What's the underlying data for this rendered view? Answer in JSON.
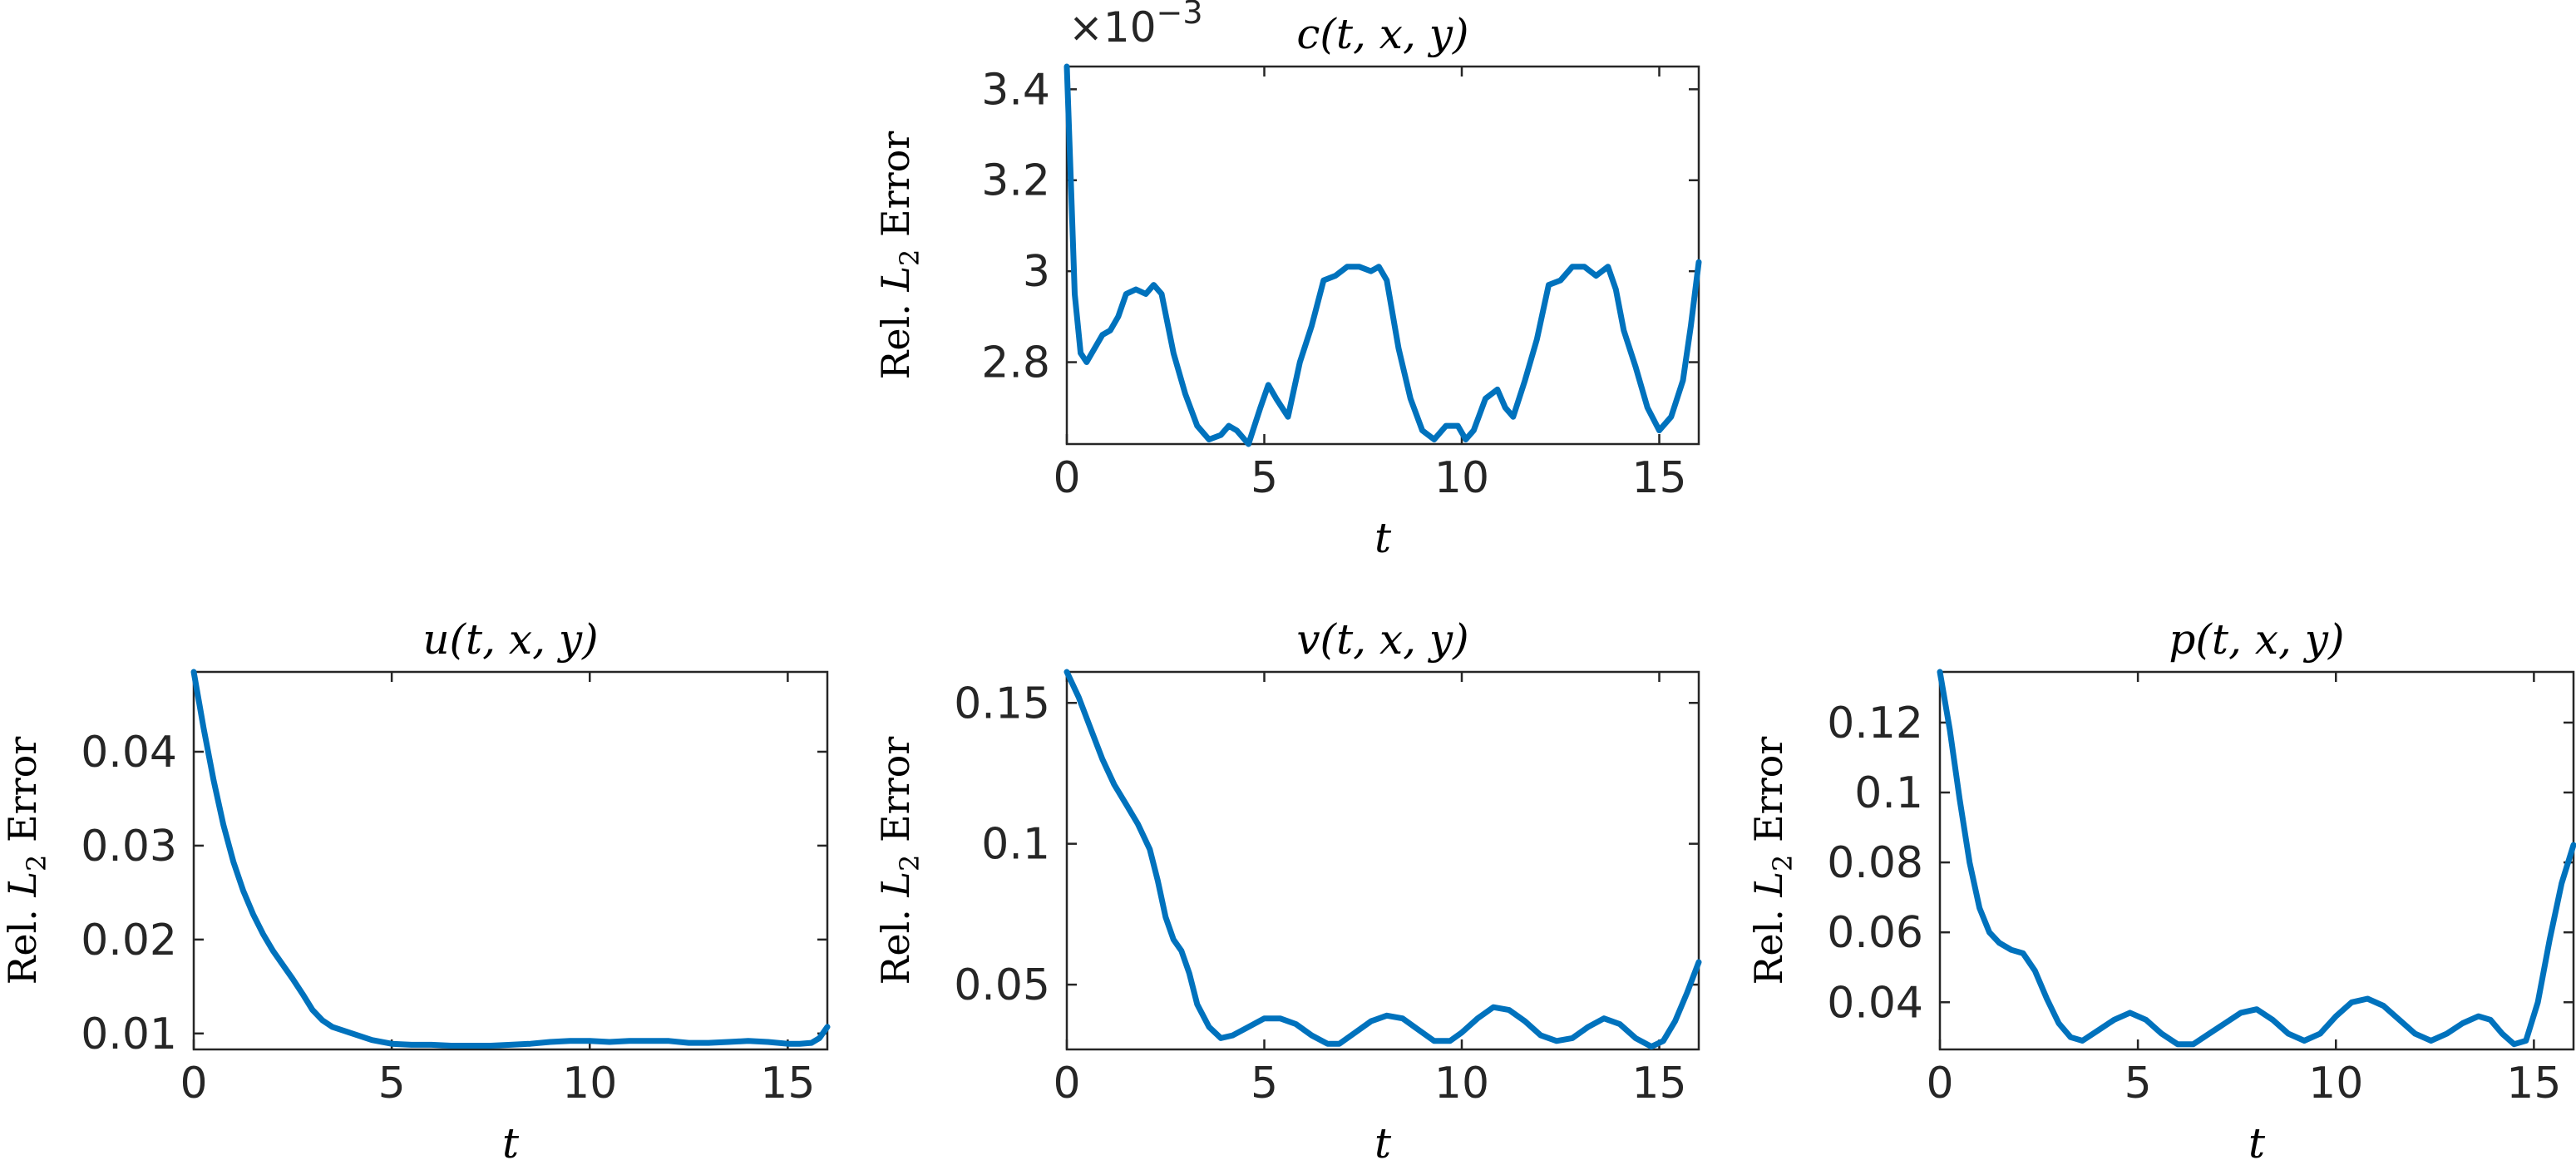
{
  "chart_data": [
    {
      "type": "line",
      "title": "c(t, x, y)",
      "xlabel": "t",
      "ylabel": {
        "prefix": "Rel. ",
        "symbol": "L",
        "subscript": "2",
        "suffix": " Error"
      },
      "y_exponent_label": {
        "base": "×10",
        "power": "−3"
      },
      "xlim": [
        0,
        16
      ],
      "ylim": [
        2.62,
        3.45
      ],
      "xticks": [
        0,
        5,
        10,
        15
      ],
      "xtick_labels": [
        "0",
        "5",
        "10",
        "15"
      ],
      "yticks": [
        2.8,
        3.0,
        3.2,
        3.4
      ],
      "ytick_labels": [
        "2.8",
        "3",
        "3.2",
        "3.4"
      ],
      "color": "#0072BD",
      "series": [
        {
          "x": [
            0,
            0.1,
            0.2,
            0.35,
            0.5,
            0.7,
            0.9,
            1.1,
            1.3,
            1.5,
            1.75,
            2.0,
            2.2,
            2.4,
            2.7,
            3.0,
            3.3,
            3.6,
            3.9,
            4.1,
            4.3,
            4.6,
            4.9,
            5.1,
            5.3,
            5.6,
            5.9,
            6.2,
            6.5,
            6.8,
            7.1,
            7.4,
            7.7,
            7.9,
            8.1,
            8.4,
            8.7,
            9.0,
            9.3,
            9.6,
            9.9,
            10.1,
            10.3,
            10.6,
            10.9,
            11.1,
            11.3,
            11.6,
            11.9,
            12.2,
            12.5,
            12.8,
            13.1,
            13.4,
            13.7,
            13.9,
            14.1,
            14.4,
            14.7,
            15.0,
            15.3,
            15.6,
            15.8,
            16.0
          ],
          "y": [
            3.45,
            3.2,
            2.95,
            2.82,
            2.8,
            2.83,
            2.86,
            2.87,
            2.9,
            2.95,
            2.96,
            2.95,
            2.97,
            2.95,
            2.82,
            2.73,
            2.66,
            2.63,
            2.64,
            2.66,
            2.65,
            2.62,
            2.7,
            2.75,
            2.72,
            2.68,
            2.8,
            2.88,
            2.98,
            2.99,
            3.01,
            3.01,
            3.0,
            3.01,
            2.98,
            2.83,
            2.72,
            2.65,
            2.63,
            2.66,
            2.66,
            2.63,
            2.65,
            2.72,
            2.74,
            2.7,
            2.68,
            2.76,
            2.85,
            2.97,
            2.98,
            3.01,
            3.01,
            2.99,
            3.01,
            2.96,
            2.87,
            2.79,
            2.7,
            2.65,
            2.68,
            2.76,
            2.88,
            3.02
          ]
        }
      ]
    },
    {
      "type": "line",
      "title": "u(t, x, y)",
      "xlabel": "t",
      "ylabel": {
        "prefix": "Rel. ",
        "symbol": "L",
        "subscript": "2",
        "suffix": " Error"
      },
      "xlim": [
        0,
        16
      ],
      "ylim": [
        0.0083,
        0.0485
      ],
      "xticks": [
        0,
        5,
        10,
        15
      ],
      "xtick_labels": [
        "0",
        "5",
        "10",
        "15"
      ],
      "yticks": [
        0.01,
        0.02,
        0.03,
        0.04
      ],
      "ytick_labels": [
        "0.01",
        "0.02",
        "0.03",
        "0.04"
      ],
      "color": "#0072BD",
      "series": [
        {
          "x": [
            0,
            0.25,
            0.5,
            0.75,
            1.0,
            1.25,
            1.5,
            1.75,
            2.0,
            2.25,
            2.5,
            2.75,
            3.0,
            3.25,
            3.5,
            4,
            4.5,
            5,
            5.5,
            6,
            6.5,
            7,
            7.5,
            8,
            8.5,
            9,
            9.5,
            10,
            10.5,
            11,
            11.5,
            12,
            12.5,
            13,
            13.5,
            14,
            14.5,
            15,
            15.3,
            15.6,
            15.8,
            16.0
          ],
          "y": [
            0.0485,
            0.0425,
            0.037,
            0.0322,
            0.0283,
            0.0252,
            0.0227,
            0.0206,
            0.0188,
            0.0173,
            0.0158,
            0.0142,
            0.0125,
            0.0114,
            0.0107,
            0.01,
            0.0093,
            0.0089,
            0.0088,
            0.0088,
            0.0087,
            0.0087,
            0.0087,
            0.0088,
            0.0089,
            0.0091,
            0.0092,
            0.0092,
            0.0091,
            0.0092,
            0.0092,
            0.0092,
            0.009,
            0.009,
            0.0091,
            0.0092,
            0.0091,
            0.0089,
            0.0089,
            0.009,
            0.0095,
            0.0107
          ]
        }
      ]
    },
    {
      "type": "line",
      "title": "v(t, x, y)",
      "xlabel": "t",
      "ylabel": {
        "prefix": "Rel. ",
        "symbol": "L",
        "subscript": "2",
        "suffix": " Error"
      },
      "xlim": [
        0,
        16
      ],
      "ylim": [
        0.027,
        0.161
      ],
      "xticks": [
        0,
        5,
        10,
        15
      ],
      "xtick_labels": [
        "0",
        "5",
        "10",
        "15"
      ],
      "yticks": [
        0.05,
        0.1,
        0.15
      ],
      "ytick_labels": [
        "0.05",
        "0.1",
        "0.15"
      ],
      "color": "#0072BD",
      "series": [
        {
          "x": [
            0,
            0.3,
            0.6,
            0.9,
            1.2,
            1.5,
            1.8,
            2.1,
            2.3,
            2.5,
            2.7,
            2.9,
            3.1,
            3.3,
            3.6,
            3.9,
            4.2,
            4.6,
            5.0,
            5.4,
            5.8,
            6.2,
            6.6,
            6.9,
            7.3,
            7.7,
            8.1,
            8.5,
            8.9,
            9.3,
            9.7,
            10.0,
            10.4,
            10.8,
            11.2,
            11.6,
            12.0,
            12.4,
            12.8,
            13.2,
            13.6,
            14.0,
            14.4,
            14.8,
            15.1,
            15.4,
            15.7,
            16.0
          ],
          "y": [
            0.161,
            0.152,
            0.141,
            0.13,
            0.121,
            0.114,
            0.107,
            0.098,
            0.087,
            0.074,
            0.066,
            0.062,
            0.054,
            0.043,
            0.035,
            0.031,
            0.032,
            0.035,
            0.038,
            0.038,
            0.036,
            0.032,
            0.029,
            0.029,
            0.033,
            0.037,
            0.039,
            0.038,
            0.034,
            0.03,
            0.03,
            0.033,
            0.038,
            0.042,
            0.041,
            0.037,
            0.032,
            0.03,
            0.031,
            0.035,
            0.038,
            0.036,
            0.031,
            0.028,
            0.03,
            0.037,
            0.047,
            0.058
          ]
        }
      ]
    },
    {
      "type": "line",
      "title": "p(t, x, y)",
      "xlabel": "t",
      "ylabel": {
        "prefix": "Rel. ",
        "symbol": "L",
        "subscript": "2",
        "suffix": " Error"
      },
      "xlim": [
        0,
        16
      ],
      "ylim": [
        0.0265,
        0.1345
      ],
      "xticks": [
        0,
        5,
        10,
        15
      ],
      "xtick_labels": [
        "0",
        "5",
        "10",
        "15"
      ],
      "yticks": [
        0.04,
        0.06,
        0.08,
        0.1,
        0.12
      ],
      "ytick_labels": [
        "0.04",
        "0.06",
        "0.08",
        "0.1",
        "0.12"
      ],
      "color": "#0072BD",
      "series": [
        {
          "x": [
            0,
            0.25,
            0.5,
            0.75,
            1.0,
            1.25,
            1.5,
            1.8,
            2.1,
            2.4,
            2.7,
            3.0,
            3.3,
            3.6,
            4.0,
            4.4,
            4.8,
            5.2,
            5.6,
            6.0,
            6.4,
            6.8,
            7.2,
            7.6,
            8.0,
            8.4,
            8.8,
            9.2,
            9.6,
            10.0,
            10.4,
            10.8,
            11.2,
            11.6,
            12.0,
            12.4,
            12.8,
            13.2,
            13.6,
            13.9,
            14.2,
            14.5,
            14.8,
            15.1,
            15.4,
            15.7,
            16.0
          ],
          "y": [
            0.1345,
            0.118,
            0.098,
            0.08,
            0.067,
            0.06,
            0.057,
            0.055,
            0.054,
            0.049,
            0.041,
            0.034,
            0.03,
            0.029,
            0.032,
            0.035,
            0.037,
            0.035,
            0.031,
            0.028,
            0.028,
            0.031,
            0.034,
            0.037,
            0.038,
            0.035,
            0.031,
            0.029,
            0.031,
            0.036,
            0.04,
            0.041,
            0.039,
            0.035,
            0.031,
            0.029,
            0.031,
            0.034,
            0.036,
            0.035,
            0.031,
            0.028,
            0.029,
            0.04,
            0.058,
            0.074,
            0.085
          ]
        }
      ]
    }
  ]
}
